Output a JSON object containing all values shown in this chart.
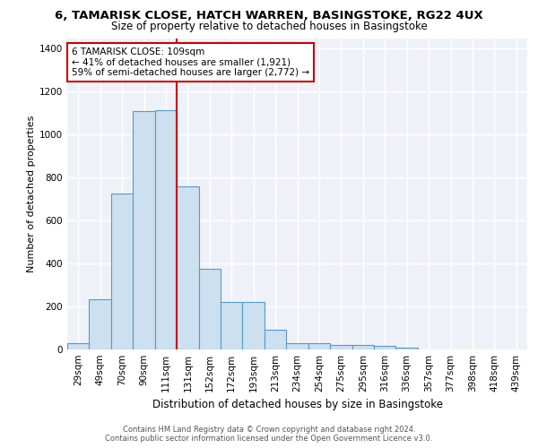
{
  "title_line1": "6, TAMARISK CLOSE, HATCH WARREN, BASINGSTOKE, RG22 4UX",
  "title_line2": "Size of property relative to detached houses in Basingstoke",
  "xlabel": "Distribution of detached houses by size in Basingstoke",
  "ylabel": "Number of detached properties",
  "categories": [
    "29sqm",
    "49sqm",
    "70sqm",
    "90sqm",
    "111sqm",
    "131sqm",
    "152sqm",
    "172sqm",
    "193sqm",
    "213sqm",
    "234sqm",
    "254sqm",
    "275sqm",
    "295sqm",
    "316sqm",
    "336sqm",
    "357sqm",
    "377sqm",
    "398sqm",
    "418sqm",
    "439sqm"
  ],
  "values": [
    30,
    235,
    725,
    1110,
    1115,
    760,
    375,
    220,
    220,
    90,
    30,
    30,
    20,
    20,
    15,
    10,
    0,
    0,
    0,
    0,
    0
  ],
  "bar_color": "#cce0f0",
  "bar_edge_color": "#5599cc",
  "vline_color": "#cc0000",
  "vline_pos": 4.5,
  "annotation_text": "6 TAMARISK CLOSE: 109sqm\n← 41% of detached houses are smaller (1,921)\n59% of semi-detached houses are larger (2,772) →",
  "annotation_box_color": "#cc0000",
  "annotation_text_color": "black",
  "ylim": [
    0,
    1450
  ],
  "yticks": [
    0,
    200,
    400,
    600,
    800,
    1000,
    1200,
    1400
  ],
  "footer_line1": "Contains HM Land Registry data © Crown copyright and database right 2024.",
  "footer_line2": "Contains public sector information licensed under the Open Government Licence v3.0.",
  "ax_background": "#eef2f8",
  "grid_color": "#ffffff",
  "fig_background": "#ffffff",
  "title_fontsize": 9.5,
  "subtitle_fontsize": 8.5,
  "ylabel_fontsize": 8,
  "xlabel_fontsize": 8.5,
  "tick_fontsize": 7.5,
  "annot_fontsize": 7.5,
  "footer_fontsize": 6
}
